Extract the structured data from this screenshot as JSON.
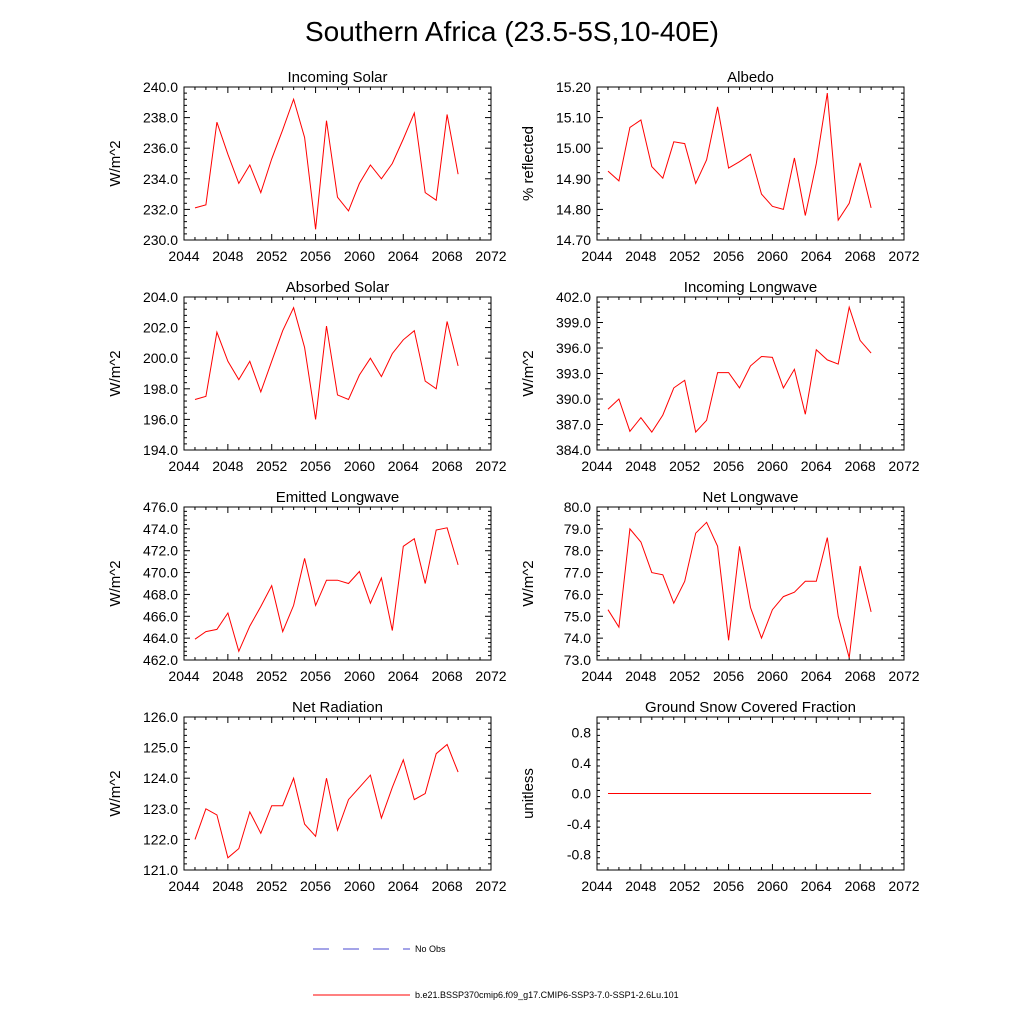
{
  "title": "Southern Africa (23.5-5S,10-40E)",
  "colors": {
    "model": "#ff0000",
    "obs": "#4a4ad0",
    "axis": "#000000"
  },
  "legend": {
    "obs_label": "No Obs",
    "model_label": "b.e21.BSSP370cmip6.f09_g17.CMIP6-SSP3-7.0-SSP1-2.6Lu.101"
  },
  "chart_data": [
    {
      "type": "line",
      "title": "Incoming Solar",
      "ylabel": "W/m^2",
      "xlim": [
        2044,
        2072
      ],
      "ylim": [
        230,
        240
      ],
      "x_ticks": [
        "2044",
        "2048",
        "2052",
        "2056",
        "2060",
        "2064",
        "2068",
        "2072"
      ],
      "y_ticks": [
        "230.0",
        "232.0",
        "234.0",
        "236.0",
        "238.0",
        "240.0"
      ],
      "series": [
        {
          "x": [
            2045,
            2046,
            2047,
            2048,
            2049,
            2050,
            2051,
            2052,
            2053,
            2054,
            2055,
            2056,
            2057,
            2058,
            2059,
            2060,
            2061,
            2062,
            2063,
            2064,
            2065,
            2066,
            2067,
            2068,
            2069
          ],
          "values": [
            232.1,
            232.3,
            237.7,
            235.6,
            233.7,
            234.9,
            233.1,
            235.3,
            237.2,
            239.2,
            236.7,
            230.7,
            237.8,
            232.8,
            231.9,
            233.7,
            234.9,
            234.0,
            235.0,
            236.6,
            238.3,
            233.1,
            232.6,
            238.2,
            234.3
          ]
        }
      ]
    },
    {
      "type": "line",
      "title": "Albedo",
      "ylabel": "% reflected",
      "xlim": [
        2044,
        2072
      ],
      "ylim": [
        14.7,
        15.2
      ],
      "x_ticks": [
        "2044",
        "2048",
        "2052",
        "2056",
        "2060",
        "2064",
        "2068",
        "2072"
      ],
      "y_ticks": [
        "14.70",
        "14.80",
        "14.90",
        "15.00",
        "15.10",
        "15.20"
      ],
      "series": [
        {
          "x": [
            2045,
            2046,
            2047,
            2048,
            2049,
            2050,
            2051,
            2052,
            2053,
            2054,
            2055,
            2056,
            2057,
            2058,
            2059,
            2060,
            2061,
            2062,
            2063,
            2064,
            2065,
            2066,
            2067,
            2068,
            2069
          ],
          "values": [
            14.925,
            14.893,
            15.068,
            15.092,
            14.94,
            14.902,
            15.021,
            15.015,
            14.885,
            14.962,
            15.135,
            14.935,
            14.956,
            14.98,
            14.85,
            14.81,
            14.8,
            14.968,
            14.78,
            14.95,
            15.18,
            14.765,
            14.82,
            14.952,
            14.805
          ]
        }
      ]
    },
    {
      "type": "line",
      "title": "Absorbed Solar",
      "ylabel": "W/m^2",
      "xlim": [
        2044,
        2072
      ],
      "ylim": [
        194,
        204
      ],
      "x_ticks": [
        "2044",
        "2048",
        "2052",
        "2056",
        "2060",
        "2064",
        "2068",
        "2072"
      ],
      "y_ticks": [
        "194.0",
        "196.0",
        "198.0",
        "200.0",
        "202.0",
        "204.0"
      ],
      "series": [
        {
          "x": [
            2045,
            2046,
            2047,
            2048,
            2049,
            2050,
            2051,
            2052,
            2053,
            2054,
            2055,
            2056,
            2057,
            2058,
            2059,
            2060,
            2061,
            2062,
            2063,
            2064,
            2065,
            2066,
            2067,
            2068,
            2069
          ],
          "values": [
            197.3,
            197.5,
            201.7,
            199.8,
            198.6,
            199.8,
            197.8,
            199.8,
            201.8,
            203.3,
            200.7,
            196.0,
            202.1,
            197.6,
            197.3,
            198.9,
            200.0,
            198.8,
            200.3,
            201.2,
            201.8,
            198.5,
            198.0,
            202.4,
            199.5
          ]
        }
      ]
    },
    {
      "type": "line",
      "title": "Incoming Longwave",
      "ylabel": "W/m^2",
      "xlim": [
        2044,
        2072
      ],
      "ylim": [
        384,
        402
      ],
      "x_ticks": [
        "2044",
        "2048",
        "2052",
        "2056",
        "2060",
        "2064",
        "2068",
        "2072"
      ],
      "y_ticks": [
        "384.0",
        "387.0",
        "390.0",
        "393.0",
        "396.0",
        "399.0",
        "402.0"
      ],
      "series": [
        {
          "x": [
            2045,
            2046,
            2047,
            2048,
            2049,
            2050,
            2051,
            2052,
            2053,
            2054,
            2055,
            2056,
            2057,
            2058,
            2059,
            2060,
            2061,
            2062,
            2063,
            2064,
            2065,
            2066,
            2067,
            2068,
            2069
          ],
          "values": [
            388.8,
            390.0,
            386.2,
            387.8,
            386.1,
            388.1,
            391.3,
            392.2,
            386.1,
            387.5,
            393.1,
            393.1,
            391.3,
            393.9,
            395.0,
            394.9,
            391.3,
            393.5,
            388.2,
            395.8,
            394.6,
            394.1,
            400.8,
            396.9,
            395.4
          ]
        }
      ]
    },
    {
      "type": "line",
      "title": "Emitted Longwave",
      "ylabel": "W/m^2",
      "xlim": [
        2044,
        2072
      ],
      "ylim": [
        462,
        476
      ],
      "x_ticks": [
        "2044",
        "2048",
        "2052",
        "2056",
        "2060",
        "2064",
        "2068",
        "2072"
      ],
      "y_ticks": [
        "462.0",
        "464.0",
        "466.0",
        "468.0",
        "470.0",
        "472.0",
        "474.0",
        "476.0"
      ],
      "series": [
        {
          "x": [
            2045,
            2046,
            2047,
            2048,
            2049,
            2050,
            2051,
            2052,
            2053,
            2054,
            2055,
            2056,
            2057,
            2058,
            2059,
            2060,
            2061,
            2062,
            2063,
            2064,
            2065,
            2066,
            2067,
            2068,
            2069
          ],
          "values": [
            463.9,
            464.6,
            464.8,
            466.3,
            462.8,
            465.1,
            466.9,
            468.8,
            464.6,
            467.0,
            471.3,
            467.0,
            469.3,
            469.3,
            469.0,
            470.1,
            467.2,
            469.5,
            464.7,
            472.4,
            473.1,
            469.0,
            473.9,
            474.1,
            470.7
          ]
        }
      ]
    },
    {
      "type": "line",
      "title": "Net Longwave",
      "ylabel": "W/m^2",
      "xlim": [
        2044,
        2072
      ],
      "ylim": [
        73,
        80
      ],
      "x_ticks": [
        "2044",
        "2048",
        "2052",
        "2056",
        "2060",
        "2064",
        "2068",
        "2072"
      ],
      "y_ticks": [
        "73.0",
        "74.0",
        "75.0",
        "76.0",
        "77.0",
        "78.0",
        "79.0",
        "80.0"
      ],
      "series": [
        {
          "x": [
            2045,
            2046,
            2047,
            2048,
            2049,
            2050,
            2051,
            2052,
            2053,
            2054,
            2055,
            2056,
            2057,
            2058,
            2059,
            2060,
            2061,
            2062,
            2063,
            2064,
            2065,
            2066,
            2067,
            2068,
            2069
          ],
          "values": [
            75.3,
            74.5,
            79.0,
            78.4,
            77.0,
            76.9,
            75.6,
            76.6,
            78.8,
            79.3,
            78.2,
            73.9,
            78.2,
            75.4,
            74.0,
            75.3,
            75.9,
            76.1,
            76.6,
            76.6,
            78.6,
            75.0,
            73.1,
            77.3,
            75.2
          ]
        }
      ]
    },
    {
      "type": "line",
      "title": "Net Radiation",
      "ylabel": "W/m^2",
      "xlim": [
        2044,
        2072
      ],
      "ylim": [
        121,
        126
      ],
      "x_ticks": [
        "2044",
        "2048",
        "2052",
        "2056",
        "2060",
        "2064",
        "2068",
        "2072"
      ],
      "y_ticks": [
        "121.0",
        "122.0",
        "123.0",
        "124.0",
        "125.0",
        "126.0"
      ],
      "series": [
        {
          "x": [
            2045,
            2046,
            2047,
            2048,
            2049,
            2050,
            2051,
            2052,
            2053,
            2054,
            2055,
            2056,
            2057,
            2058,
            2059,
            2060,
            2061,
            2062,
            2063,
            2064,
            2065,
            2066,
            2067,
            2068,
            2069
          ],
          "values": [
            122.0,
            123.0,
            122.8,
            121.4,
            121.7,
            122.9,
            122.2,
            123.1,
            123.1,
            124.0,
            122.5,
            122.1,
            124.0,
            122.3,
            123.3,
            123.7,
            124.1,
            122.7,
            123.7,
            124.6,
            123.3,
            123.5,
            124.8,
            125.1,
            124.2
          ]
        }
      ]
    },
    {
      "type": "line",
      "title": "Ground Snow Covered Fraction",
      "ylabel": "unitless",
      "xlim": [
        2044,
        2072
      ],
      "ylim": [
        -1,
        1
      ],
      "x_ticks": [
        "2044",
        "2048",
        "2052",
        "2056",
        "2060",
        "2064",
        "2068",
        "2072"
      ],
      "y_ticks": [
        "-0.8",
        "-0.4",
        "0.0",
        "0.4",
        "0.8"
      ],
      "series": [
        {
          "x": [
            2045,
            2069
          ],
          "values": [
            0,
            0
          ]
        }
      ]
    }
  ]
}
